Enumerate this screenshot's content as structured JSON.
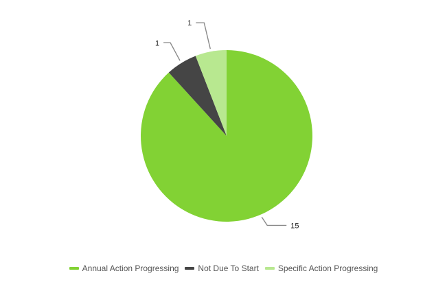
{
  "chart_data": {
    "type": "pie",
    "title": "",
    "categories": [
      "Annual Action Progressing",
      "Not Due To Start",
      "Specific Action Progressing"
    ],
    "values": [
      15,
      1,
      1
    ],
    "colors": [
      "#82d234",
      "#454545",
      "#b8e890"
    ],
    "data_labels": [
      "15",
      "1",
      "1"
    ],
    "legend_position": "bottom-center",
    "start_angle": "12 o'clock, clockwise"
  }
}
